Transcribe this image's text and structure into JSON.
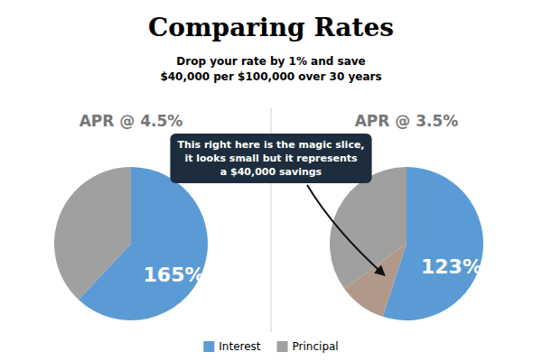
{
  "title": "Comparing Rates",
  "subtitle": "Drop your rate by 1% and save\n$40,000 per $100,000 over 30 years",
  "annotation": "This right here is the magic slice,\nit looks small but it represents\na $40,000 savings",
  "chart_data": [
    {
      "type": "pie",
      "title": "APR @ 4.5%",
      "categories": [
        "Interest",
        "Principal"
      ],
      "values": [
        62,
        38
      ],
      "colors": [
        "#5b9bd5",
        "#a0a0a0"
      ],
      "annotations": [
        "165%"
      ],
      "legend": "bottom"
    },
    {
      "type": "pie",
      "title": "APR @ 3.5%",
      "categories": [
        "Interest",
        null,
        "Principal"
      ],
      "values": [
        55,
        10,
        35
      ],
      "colors": [
        "#5b9bd5",
        "#b0998a",
        "#a0a0a0"
      ],
      "annotations": [
        "123%"
      ]
    }
  ]
}
